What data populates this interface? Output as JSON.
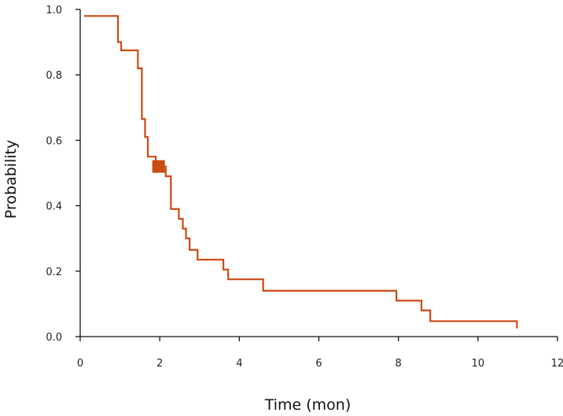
{
  "chart_data": {
    "type": "line",
    "title": "",
    "xlabel": "Time (mon)",
    "ylabel": "Probability",
    "xlim": [
      0,
      12
    ],
    "ylim": [
      0,
      1.0
    ],
    "x_ticks": [
      0,
      2,
      4,
      6,
      8,
      10,
      12
    ],
    "x_tick_labels": [
      "0",
      "2",
      "4",
      "6",
      "8",
      "10",
      "12"
    ],
    "y_ticks": [
      0,
      0.2,
      0.4,
      0.6,
      0.8,
      1.0
    ],
    "y_tick_labels": [
      "0.0",
      "0.2",
      "0.4",
      "0.6",
      "0.8",
      "1.0"
    ],
    "grid": false,
    "line_color": "#cc4a14",
    "series": [
      {
        "style": "step",
        "points": [
          [
            0.1,
            0.98
          ],
          [
            0.95,
            0.98
          ],
          [
            0.95,
            0.9
          ],
          [
            1.03,
            0.9
          ],
          [
            1.03,
            0.875
          ],
          [
            1.45,
            0.875
          ],
          [
            1.45,
            0.82
          ],
          [
            1.55,
            0.82
          ],
          [
            1.55,
            0.665
          ],
          [
            1.63,
            0.665
          ],
          [
            1.63,
            0.61
          ],
          [
            1.7,
            0.61
          ],
          [
            1.7,
            0.55
          ],
          [
            1.9,
            0.55
          ],
          [
            1.9,
            0.52
          ],
          [
            2.15,
            0.52
          ],
          [
            2.15,
            0.49
          ],
          [
            2.28,
            0.49
          ],
          [
            2.28,
            0.39
          ],
          [
            2.48,
            0.39
          ],
          [
            2.48,
            0.36
          ],
          [
            2.58,
            0.36
          ],
          [
            2.58,
            0.33
          ],
          [
            2.66,
            0.33
          ],
          [
            2.66,
            0.3
          ],
          [
            2.75,
            0.3
          ],
          [
            2.75,
            0.265
          ],
          [
            2.95,
            0.265
          ],
          [
            2.95,
            0.235
          ],
          [
            3.6,
            0.235
          ],
          [
            3.6,
            0.205
          ],
          [
            3.72,
            0.205
          ],
          [
            3.72,
            0.175
          ],
          [
            4.6,
            0.175
          ],
          [
            4.6,
            0.14
          ],
          [
            7.95,
            0.14
          ],
          [
            7.95,
            0.11
          ],
          [
            8.58,
            0.11
          ],
          [
            8.58,
            0.08
          ],
          [
            8.8,
            0.08
          ],
          [
            8.8,
            0.047
          ],
          [
            10.98,
            0.047
          ],
          [
            10.98,
            0.025
          ]
        ],
        "censor_marks": [
          [
            1.97,
            0.52
          ]
        ]
      }
    ]
  }
}
